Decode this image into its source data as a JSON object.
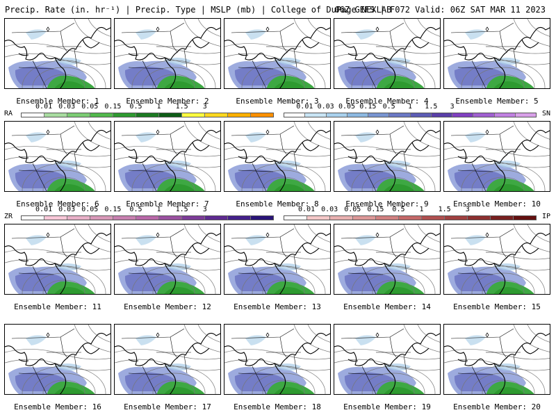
{
  "header": {
    "left": "Precip. Rate (in. hr⁻¹) | Precip. Type | MSLP (mb) | College of DuPage NEXLAB",
    "right": "06Z GEFS | F072 Valid: 06Z SAT MAR 11 2023"
  },
  "members": [
    "Ensemble Member: 1",
    "Ensemble Member: 2",
    "Ensemble Member: 3",
    "Ensemble Member: 4",
    "Ensemble Member: 5",
    "Ensemble Member: 6",
    "Ensemble Member: 7",
    "Ensemble Member: 8",
    "Ensemble Member: 9",
    "Ensemble Member: 10",
    "Ensemble Member: 11",
    "Ensemble Member: 12",
    "Ensemble Member: 13",
    "Ensemble Member: 14",
    "Ensemble Member: 15",
    "Ensemble Member: 16",
    "Ensemble Member: 17",
    "Ensemble Member: 18",
    "Ensemble Member: 19",
    "Ensemble Member: 20"
  ],
  "legends": {
    "ra": {
      "tag": "RA",
      "ticks": [
        "0.01",
        "0.03",
        "0.05",
        "0.15",
        "0.5",
        "1",
        "1.5",
        "3"
      ],
      "colors": [
        "#ffffff",
        "#a8dca0",
        "#7ccc74",
        "#52b84c",
        "#2e9a30",
        "#1c7a22",
        "#0e5c16",
        "#ffff40",
        "#ffd820",
        "#ffb000",
        "#ff9000"
      ]
    },
    "sn": {
      "tag": "SN",
      "ticks": [
        "0.01",
        "0.03",
        "0.05",
        "0.15",
        "0.5",
        "1",
        "1.5",
        "3"
      ],
      "colors": [
        "#ffffff",
        "#c8e4f4",
        "#a8d0ec",
        "#8cb8e0",
        "#7894d0",
        "#6a78c4",
        "#5c5cb4",
        "#5a3fa8",
        "#8040c0",
        "#a060d0",
        "#c080e0",
        "#d8a0e8"
      ]
    },
    "zr": {
      "tag": "ZR",
      "ticks": [
        "0.01",
        "0.03",
        "0.05",
        "0.15",
        "0.5",
        "1",
        "1.5",
        "3"
      ],
      "colors": [
        "#ffffff",
        "#f8c8d8",
        "#e8b0c8",
        "#d898b8",
        "#c880b0",
        "#b868a8",
        "#9a50a0",
        "#7c3c98",
        "#5e2a90",
        "#44208a",
        "#2a1478"
      ]
    },
    "ip": {
      "tag": "IP",
      "ticks": [
        "0.01",
        "0.03",
        "0.05",
        "0.15",
        "0.5",
        "1",
        "1.5",
        "3"
      ],
      "colors": [
        "#ffffff",
        "#f4c8c8",
        "#e8b0b0",
        "#dc9898",
        "#d08080",
        "#c46868",
        "#b05050",
        "#a04040",
        "#8c3030",
        "#782020",
        "#641010"
      ]
    }
  }
}
